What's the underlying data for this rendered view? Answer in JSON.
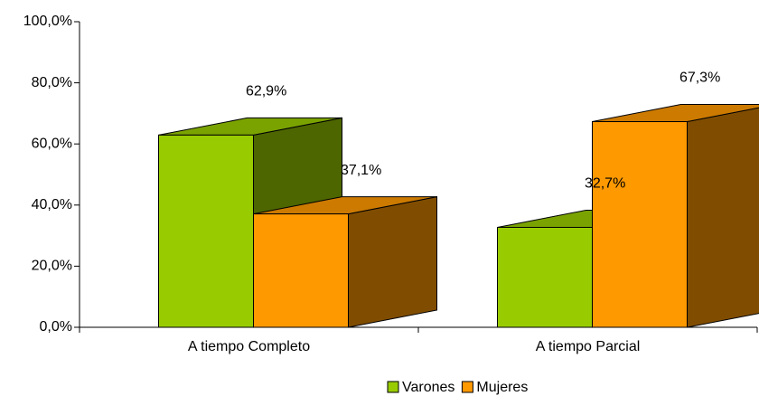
{
  "chart_data": {
    "type": "bar3d",
    "categories": [
      "A tiempo Completo",
      "A tiempo Parcial"
    ],
    "series": [
      {
        "name": "Varones",
        "color": "#99cc00",
        "values": [
          62.9,
          32.7
        ],
        "value_labels": [
          "62,9%",
          "32,7%"
        ]
      },
      {
        "name": "Mujeres",
        "color": "#ff9900",
        "values": [
          37.1,
          67.3
        ],
        "value_labels": [
          "37,1%",
          "67,3%"
        ]
      }
    ],
    "ylim": [
      0,
      100
    ],
    "yticks": [
      {
        "value": 0,
        "label": "0,0%"
      },
      {
        "value": 20,
        "label": "20,0%"
      },
      {
        "value": 40,
        "label": "40,0%"
      },
      {
        "value": 60,
        "label": "60,0%"
      },
      {
        "value": 80,
        "label": "80,0%"
      },
      {
        "value": 100,
        "label": "100,0%"
      }
    ],
    "legend": "bottom"
  }
}
